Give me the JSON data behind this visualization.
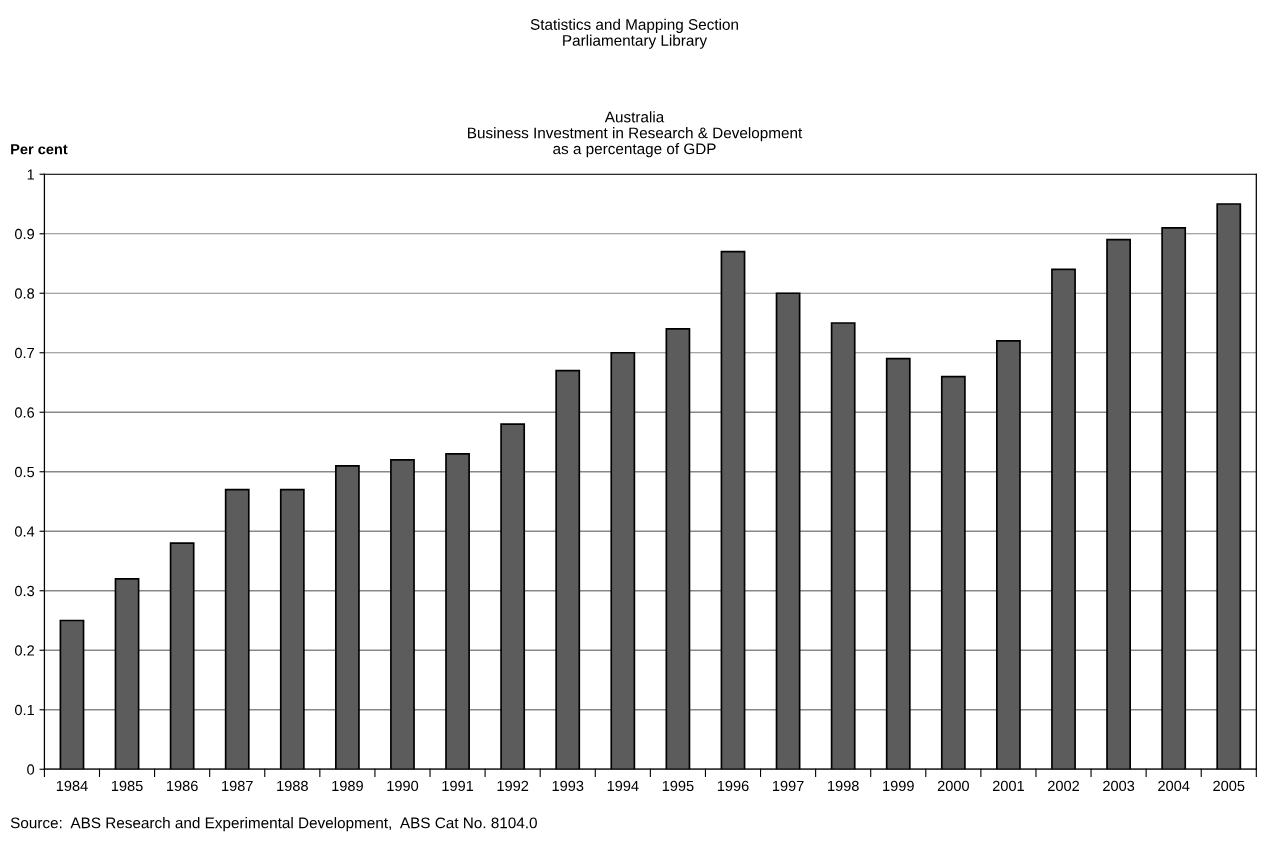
{
  "chart_data": {
    "type": "bar",
    "title": "Australia\nBusiness Investment in Research & Development\nas a percentage of GDP",
    "subtitle": "Statistics and Mapping Section\nParliamentary Library",
    "ylabel": "Per cent",
    "annotations": [
      "Source:  ABS Research and Experimental Development,  ABS Cat No. 8104.0"
    ],
    "categories": [
      "1984",
      "1985",
      "1986",
      "1987",
      "1988",
      "1989",
      "1990",
      "1991",
      "1992",
      "1993",
      "1994",
      "1995",
      "1996",
      "1997",
      "1998",
      "1999",
      "2000",
      "2001",
      "2002",
      "2003",
      "2004",
      "2005"
    ],
    "values": [
      0.25,
      0.32,
      0.38,
      0.47,
      0.47,
      0.51,
      0.52,
      0.53,
      0.58,
      0.67,
      0.7,
      0.74,
      0.87,
      0.8,
      0.75,
      0.69,
      0.66,
      0.72,
      0.84,
      0.89,
      0.91,
      0.95
    ],
    "color": "#5c5c5c",
    "ylim": [
      0,
      1
    ],
    "yticks": [
      0,
      0.1,
      0.2,
      0.3,
      0.4,
      0.5,
      0.6,
      0.7,
      0.8,
      0.9,
      1
    ],
    "grid": "y"
  }
}
